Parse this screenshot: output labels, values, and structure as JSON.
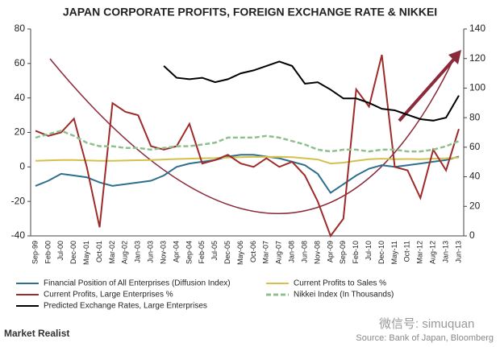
{
  "chart_data": {
    "type": "line",
    "title": "JAPAN CORPORATE PROFITS, FOREIGN EXCHANGE RATE & NIKKEI",
    "categories": [
      "Sep-99",
      "Feb-00",
      "Jul-00",
      "Dec-00",
      "May-01",
      "Oct-01",
      "Mar-02",
      "Aug-02",
      "Jan-03",
      "Jun-03",
      "Nov-03",
      "Apr-04",
      "Sep-04",
      "Feb-05",
      "Jul-05",
      "Dec-05",
      "May-06",
      "Oct-06",
      "Mar-07",
      "Aug-07",
      "Jan-08",
      "Jun-08",
      "Nov-08",
      "Apr-09",
      "Sep-09",
      "Feb-10",
      "Jul-10",
      "Dec-10",
      "May-11",
      "Oct-11",
      "Mar-12",
      "Aug-12",
      "Jan-13",
      "Jun-13"
    ],
    "ylim": [
      -40,
      80
    ],
    "yticks": [
      -40,
      -20,
      0,
      20,
      40,
      60,
      80
    ],
    "y2lim": [
      0,
      140
    ],
    "y2ticks": [
      0,
      20,
      40,
      60,
      80,
      100,
      120,
      140
    ],
    "series": [
      {
        "name": "Financial Position of All Enterprises (Diffusion Index)",
        "color": "#2e6f8e",
        "values": [
          -11,
          -8,
          -4,
          -5,
          -6,
          -9,
          -11,
          -10,
          -9,
          -8,
          -5,
          0,
          2,
          3,
          4,
          6,
          7,
          7,
          6,
          5,
          3,
          1,
          -4,
          -15,
          -10,
          -5,
          -1,
          1,
          0,
          1,
          2,
          3,
          4,
          6
        ]
      },
      {
        "name": "Current Profits to Sales %",
        "color": "#d4c04a",
        "values": [
          3.5,
          3.8,
          4,
          4,
          3.8,
          3.5,
          3.5,
          3.7,
          3.9,
          4,
          4.3,
          4.6,
          4.8,
          5,
          5.1,
          5.5,
          5.6,
          5.8,
          5.8,
          5.9,
          5.6,
          5,
          4.3,
          2,
          2.5,
          3.5,
          4.5,
          4.8,
          4.5,
          4.6,
          4.5,
          4.8,
          5,
          5.5
        ]
      },
      {
        "name": "Current Profits, Large Enterprises %",
        "color": "#9e2a2a",
        "values": [
          21,
          18,
          20,
          28,
          0,
          -35,
          37,
          32,
          30,
          12,
          10,
          12,
          25,
          2,
          4,
          7,
          2,
          0,
          5,
          0,
          3,
          -5,
          -20,
          -40,
          -30,
          45,
          35,
          65,
          0,
          -2,
          -18,
          10,
          -2,
          22
        ]
      },
      {
        "name": "Nikkei Index (In Thousands)",
        "color": "#8fbf8f",
        "dash": true,
        "values": [
          17,
          19,
          21,
          18,
          14,
          12,
          12,
          11,
          11,
          10,
          11,
          12,
          12,
          13,
          14,
          17,
          17,
          17,
          18,
          17,
          15,
          13,
          10,
          9,
          10,
          10,
          9,
          10,
          10,
          9,
          9,
          10,
          12,
          15
        ]
      },
      {
        "name": "Predicted Exchange Rates, Large Enterprises",
        "color": "#000000",
        "axis": "y2",
        "values": [
          null,
          null,
          null,
          null,
          null,
          null,
          null,
          null,
          null,
          null,
          115,
          107,
          106,
          107,
          104,
          106,
          110,
          112,
          115,
          118,
          115,
          103,
          104,
          99,
          93,
          93,
          90,
          86,
          85,
          82,
          79,
          78,
          80,
          95
        ]
      }
    ],
    "brand": "Market Realist",
    "watermark": "微信号: simuquan",
    "source": "Source: Bank of Japan, Bloomberg"
  }
}
